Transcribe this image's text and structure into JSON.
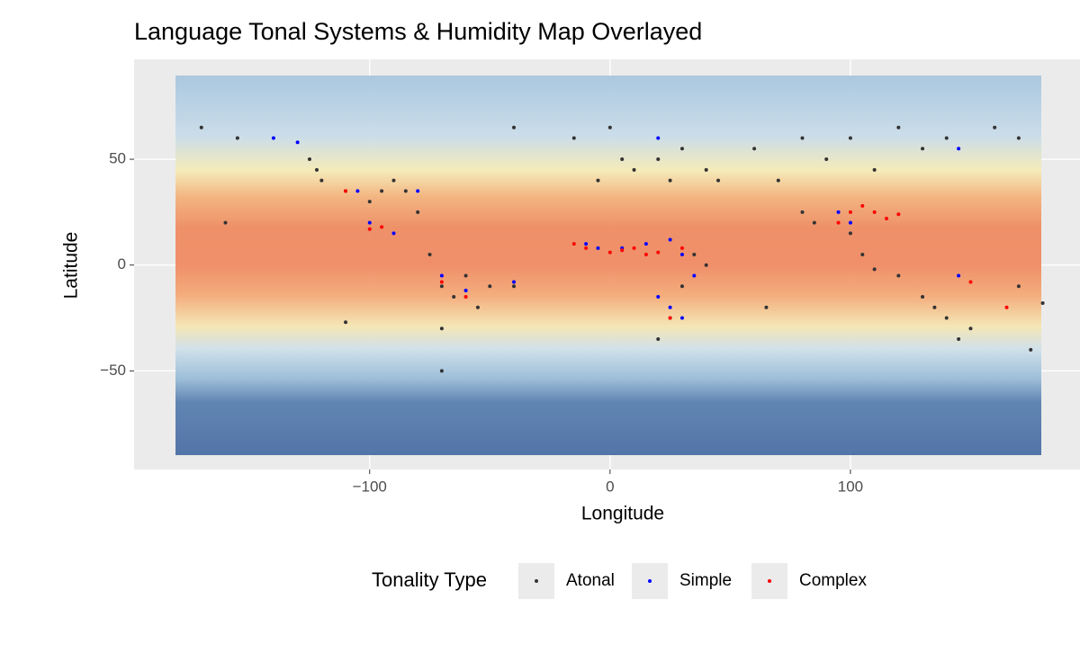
{
  "chart_data": {
    "type": "scatter",
    "title": "Language Tonal Systems & Humidity Map Overlayed",
    "x_label": "Longitude",
    "y_label": "Latitude",
    "legend_title": "Tonality Type",
    "legend": "bottom",
    "grid": true,
    "xlim": [
      -198,
      195.5
    ],
    "ylim": [
      -96.6,
      97.2
    ],
    "xticks": [
      {
        "value": -100,
        "label": "−100"
      },
      0,
      100
    ],
    "yticks": [
      {
        "value": -50,
        "label": "−50"
      },
      0,
      50
    ],
    "series": [
      {
        "name": "Atonal",
        "color": "#333333",
        "x": [
          -170,
          -155,
          -125,
          -122,
          -120,
          -110,
          -100,
          -95,
          -90,
          -85,
          -80,
          -75,
          -70,
          -65,
          -60,
          -55,
          -50,
          -70,
          -70,
          -110,
          -160,
          -40,
          5,
          10,
          20,
          30,
          40,
          45,
          60,
          70,
          80,
          90,
          100,
          110,
          120,
          130,
          140,
          160,
          170,
          -5,
          25,
          35,
          40,
          30,
          25,
          80,
          85,
          100,
          105,
          110,
          120,
          130,
          135,
          140,
          145,
          150,
          175,
          180,
          170,
          65,
          20,
          -15,
          -40,
          0
        ],
        "values": [
          65,
          60,
          50,
          45,
          40,
          35,
          30,
          35,
          40,
          35,
          25,
          5,
          -10,
          -15,
          -5,
          -20,
          -10,
          -30,
          -50,
          -27,
          20,
          -10,
          50,
          45,
          50,
          55,
          45,
          40,
          55,
          40,
          60,
          50,
          60,
          45,
          65,
          55,
          60,
          65,
          60,
          40,
          40,
          5,
          0,
          -10,
          -25,
          25,
          20,
          15,
          5,
          -2,
          -5,
          -15,
          -20,
          -25,
          -35,
          -30,
          -40,
          -18,
          -10,
          -20,
          -35,
          60,
          65,
          65
        ]
      },
      {
        "name": "Simple",
        "color": "#0000ff",
        "x": [
          -130,
          -105,
          -100,
          -80,
          -70,
          -60,
          -40,
          -10,
          -5,
          5,
          15,
          25,
          30,
          35,
          20,
          30,
          20,
          95,
          100,
          145,
          145,
          -90,
          -140,
          25
        ],
        "values": [
          58,
          35,
          20,
          35,
          -5,
          -12,
          -8,
          10,
          8,
          8,
          10,
          12,
          5,
          -5,
          -15,
          -25,
          60,
          25,
          20,
          -5,
          55,
          15,
          60,
          -20
        ]
      },
      {
        "name": "Complex",
        "color": "#ff0000",
        "x": [
          -100,
          -95,
          -15,
          -10,
          0,
          5,
          10,
          15,
          20,
          30,
          25,
          100,
          105,
          110,
          115,
          120,
          95,
          150,
          165,
          -60,
          -70,
          -110
        ],
        "values": [
          17,
          18,
          10,
          8,
          6,
          7,
          8,
          5,
          6,
          8,
          -25,
          25,
          28,
          25,
          22,
          24,
          20,
          -8,
          -20,
          -15,
          -8,
          35
        ]
      }
    ]
  }
}
